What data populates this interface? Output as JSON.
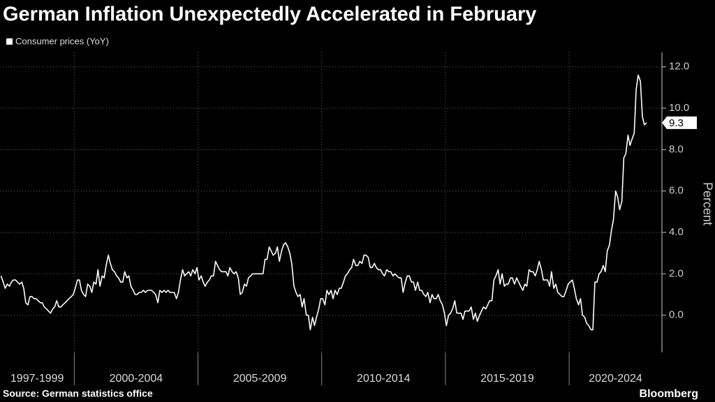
{
  "chart_data": {
    "type": "line",
    "title": "German Inflation Unexpectedly Accelerated in February",
    "source": "Source: German statistics office",
    "brand": "Bloomberg",
    "y_label": "Percent",
    "grid": true,
    "xlim": [
      1997,
      2023.75
    ],
    "x_bands": [
      {
        "label": "1997-1999",
        "start": 1997
      },
      {
        "label": "2000-2004",
        "start": 2000
      },
      {
        "label": "2005-2009",
        "start": 2005
      },
      {
        "label": "2010-2014",
        "start": 2010
      },
      {
        "label": "2015-2019",
        "start": 2015
      },
      {
        "label": "2020-2024",
        "start": 2020
      }
    ],
    "ylim": [
      -1.8,
      12.7
    ],
    "yticks": [
      {
        "value": 0,
        "label": "0.0"
      },
      {
        "value": 2,
        "label": "2.0"
      },
      {
        "value": 4,
        "label": "4.0"
      },
      {
        "value": 6,
        "label": "6.0"
      },
      {
        "value": 8,
        "label": "8.0"
      },
      {
        "value": 10,
        "label": "10.0"
      },
      {
        "value": 12,
        "label": "12.0"
      }
    ],
    "x": [
      1997.04,
      1997.13,
      1997.21,
      1997.29,
      1997.38,
      1997.46,
      1997.54,
      1997.63,
      1997.71,
      1997.79,
      1997.88,
      1997.96,
      1998.04,
      1998.13,
      1998.21,
      1998.29,
      1998.38,
      1998.46,
      1998.54,
      1998.63,
      1998.71,
      1998.79,
      1998.88,
      1998.96,
      1999.04,
      1999.13,
      1999.21,
      1999.29,
      1999.38,
      1999.46,
      1999.54,
      1999.63,
      1999.71,
      1999.79,
      1999.88,
      1999.96,
      2000.04,
      2000.13,
      2000.21,
      2000.29,
      2000.38,
      2000.46,
      2000.54,
      2000.63,
      2000.71,
      2000.79,
      2000.88,
      2000.96,
      2001.04,
      2001.13,
      2001.21,
      2001.29,
      2001.38,
      2001.46,
      2001.54,
      2001.63,
      2001.71,
      2001.79,
      2001.88,
      2001.96,
      2002.04,
      2002.13,
      2002.21,
      2002.29,
      2002.38,
      2002.46,
      2002.54,
      2002.63,
      2002.71,
      2002.79,
      2002.88,
      2002.96,
      2003.04,
      2003.13,
      2003.21,
      2003.29,
      2003.38,
      2003.46,
      2003.54,
      2003.63,
      2003.71,
      2003.79,
      2003.88,
      2003.96,
      2004.04,
      2004.13,
      2004.21,
      2004.29,
      2004.38,
      2004.46,
      2004.54,
      2004.63,
      2004.71,
      2004.79,
      2004.88,
      2004.96,
      2005.04,
      2005.13,
      2005.21,
      2005.29,
      2005.38,
      2005.46,
      2005.54,
      2005.63,
      2005.71,
      2005.79,
      2005.88,
      2005.96,
      2006.04,
      2006.13,
      2006.21,
      2006.29,
      2006.38,
      2006.46,
      2006.54,
      2006.63,
      2006.71,
      2006.79,
      2006.88,
      2006.96,
      2007.04,
      2007.13,
      2007.21,
      2007.29,
      2007.38,
      2007.46,
      2007.54,
      2007.63,
      2007.71,
      2007.79,
      2007.88,
      2007.96,
      2008.04,
      2008.13,
      2008.21,
      2008.29,
      2008.38,
      2008.46,
      2008.54,
      2008.63,
      2008.71,
      2008.79,
      2008.88,
      2008.96,
      2009.04,
      2009.13,
      2009.21,
      2009.29,
      2009.38,
      2009.46,
      2009.54,
      2009.63,
      2009.71,
      2009.79,
      2009.88,
      2009.96,
      2010.04,
      2010.13,
      2010.21,
      2010.29,
      2010.38,
      2010.46,
      2010.54,
      2010.63,
      2010.71,
      2010.79,
      2010.88,
      2010.96,
      2011.04,
      2011.13,
      2011.21,
      2011.29,
      2011.38,
      2011.46,
      2011.54,
      2011.63,
      2011.71,
      2011.79,
      2011.88,
      2011.96,
      2012.04,
      2012.13,
      2012.21,
      2012.29,
      2012.38,
      2012.46,
      2012.54,
      2012.63,
      2012.71,
      2012.79,
      2012.88,
      2012.96,
      2013.04,
      2013.13,
      2013.21,
      2013.29,
      2013.38,
      2013.46,
      2013.54,
      2013.63,
      2013.71,
      2013.79,
      2013.88,
      2013.96,
      2014.04,
      2014.13,
      2014.21,
      2014.29,
      2014.38,
      2014.46,
      2014.54,
      2014.63,
      2014.71,
      2014.79,
      2014.88,
      2014.96,
      2015.04,
      2015.13,
      2015.21,
      2015.29,
      2015.38,
      2015.46,
      2015.54,
      2015.63,
      2015.71,
      2015.79,
      2015.88,
      2015.96,
      2016.04,
      2016.13,
      2016.21,
      2016.29,
      2016.38,
      2016.46,
      2016.54,
      2016.63,
      2016.71,
      2016.79,
      2016.88,
      2016.96,
      2017.04,
      2017.13,
      2017.21,
      2017.29,
      2017.38,
      2017.46,
      2017.54,
      2017.63,
      2017.71,
      2017.79,
      2017.88,
      2017.96,
      2018.04,
      2018.13,
      2018.21,
      2018.29,
      2018.38,
      2018.46,
      2018.54,
      2018.63,
      2018.71,
      2018.79,
      2018.88,
      2018.96,
      2019.04,
      2019.13,
      2019.21,
      2019.29,
      2019.38,
      2019.46,
      2019.54,
      2019.63,
      2019.71,
      2019.79,
      2019.88,
      2019.96,
      2020.04,
      2020.13,
      2020.21,
      2020.29,
      2020.38,
      2020.46,
      2020.54,
      2020.63,
      2020.71,
      2020.79,
      2020.88,
      2020.96,
      2021.04,
      2021.13,
      2021.21,
      2021.29,
      2021.38,
      2021.46,
      2021.54,
      2021.63,
      2021.71,
      2021.79,
      2021.88,
      2021.96,
      2022.04,
      2022.13,
      2022.21,
      2022.29,
      2022.38,
      2022.46,
      2022.54,
      2022.63,
      2022.71,
      2022.79,
      2022.88,
      2022.96,
      2023.04,
      2023.13
    ],
    "series": [
      {
        "name": "Consumer prices (YoY)",
        "color": "#ffffff",
        "values": [
          1.9,
          1.6,
          1.3,
          1.5,
          1.4,
          1.6,
          1.7,
          1.7,
          1.6,
          1.5,
          1.6,
          1.3,
          0.6,
          0.5,
          0.9,
          0.9,
          0.8,
          0.8,
          0.7,
          0.6,
          0.6,
          0.4,
          0.3,
          0.2,
          0.1,
          0.3,
          0.4,
          0.7,
          0.4,
          0.4,
          0.5,
          0.6,
          0.7,
          0.8,
          0.9,
          1.0,
          1.3,
          1.7,
          1.7,
          1.2,
          1.0,
          0.9,
          1.5,
          1.4,
          1.1,
          1.6,
          1.5,
          2.2,
          1.4,
          1.9,
          1.8,
          2.4,
          2.9,
          2.5,
          2.2,
          2.1,
          1.9,
          1.8,
          1.6,
          1.6,
          2.1,
          1.8,
          1.9,
          1.4,
          1.2,
          1.0,
          1.0,
          1.1,
          1.1,
          1.2,
          1.1,
          1.2,
          1.2,
          1.2,
          1.1,
          1.0,
          0.6,
          1.2,
          1.1,
          1.2,
          1.1,
          1.2,
          1.1,
          1.1,
          1.1,
          0.8,
          1.1,
          1.7,
          2.2,
          1.9,
          2.0,
          2.1,
          1.9,
          2.2,
          2.0,
          2.3,
          1.7,
          1.9,
          1.6,
          1.4,
          1.6,
          1.7,
          1.9,
          1.9,
          2.6,
          2.4,
          2.2,
          2.1,
          2.1,
          2.1,
          1.9,
          2.3,
          2.1,
          2.0,
          2.1,
          1.8,
          1.0,
          1.1,
          1.5,
          1.4,
          1.8,
          1.9,
          2.0,
          2.0,
          2.0,
          2.0,
          2.0,
          2.0,
          2.7,
          2.7,
          3.3,
          3.1,
          2.9,
          3.0,
          3.3,
          2.6,
          3.1,
          3.4,
          3.5,
          3.3,
          3.0,
          2.5,
          1.4,
          1.1,
          0.9,
          1.0,
          0.4,
          0.8,
          0.0,
          0.0,
          -0.7,
          -0.1,
          -0.5,
          -0.1,
          0.3,
          0.8,
          0.8,
          0.5,
          1.2,
          1.0,
          1.2,
          0.8,
          1.2,
          1.0,
          1.3,
          1.3,
          1.6,
          1.9,
          2.0,
          2.2,
          2.3,
          2.7,
          2.4,
          2.4,
          2.6,
          2.5,
          2.9,
          2.9,
          2.8,
          2.3,
          2.3,
          2.5,
          2.3,
          2.2,
          2.2,
          2.0,
          1.9,
          2.2,
          2.1,
          2.1,
          1.9,
          2.0,
          1.9,
          1.8,
          1.8,
          1.1,
          1.6,
          1.9,
          1.9,
          1.6,
          1.6,
          1.2,
          1.6,
          1.2,
          1.2,
          1.0,
          0.9,
          1.1,
          0.6,
          1.0,
          0.8,
          0.8,
          1.0,
          0.7,
          0.5,
          0.1,
          -0.5,
          0.0,
          0.1,
          0.3,
          0.7,
          0.1,
          0.1,
          0.1,
          -0.2,
          0.2,
          0.2,
          0.2,
          0.4,
          -0.2,
          0.1,
          -0.3,
          0.0,
          0.2,
          0.4,
          0.3,
          0.5,
          0.7,
          0.7,
          1.7,
          1.9,
          2.2,
          1.5,
          2.0,
          1.4,
          1.5,
          1.5,
          1.8,
          1.8,
          1.5,
          1.8,
          1.6,
          1.4,
          1.2,
          1.5,
          1.4,
          2.2,
          2.1,
          2.1,
          1.9,
          2.2,
          2.6,
          2.2,
          1.7,
          1.7,
          1.7,
          1.4,
          2.1,
          1.3,
          1.5,
          1.1,
          1.0,
          0.9,
          0.9,
          1.2,
          1.5,
          1.6,
          1.7,
          1.3,
          0.8,
          0.5,
          0.8,
          0.0,
          -0.1,
          -0.4,
          -0.5,
          -0.7,
          -0.7,
          1.6,
          1.6,
          2.0,
          2.1,
          2.4,
          2.1,
          3.1,
          3.4,
          4.1,
          4.6,
          6.0,
          5.7,
          5.1,
          5.5,
          7.6,
          7.8,
          8.7,
          8.2,
          8.5,
          8.8,
          10.9,
          11.6,
          11.3,
          9.6,
          9.2,
          9.3
        ]
      }
    ]
  }
}
